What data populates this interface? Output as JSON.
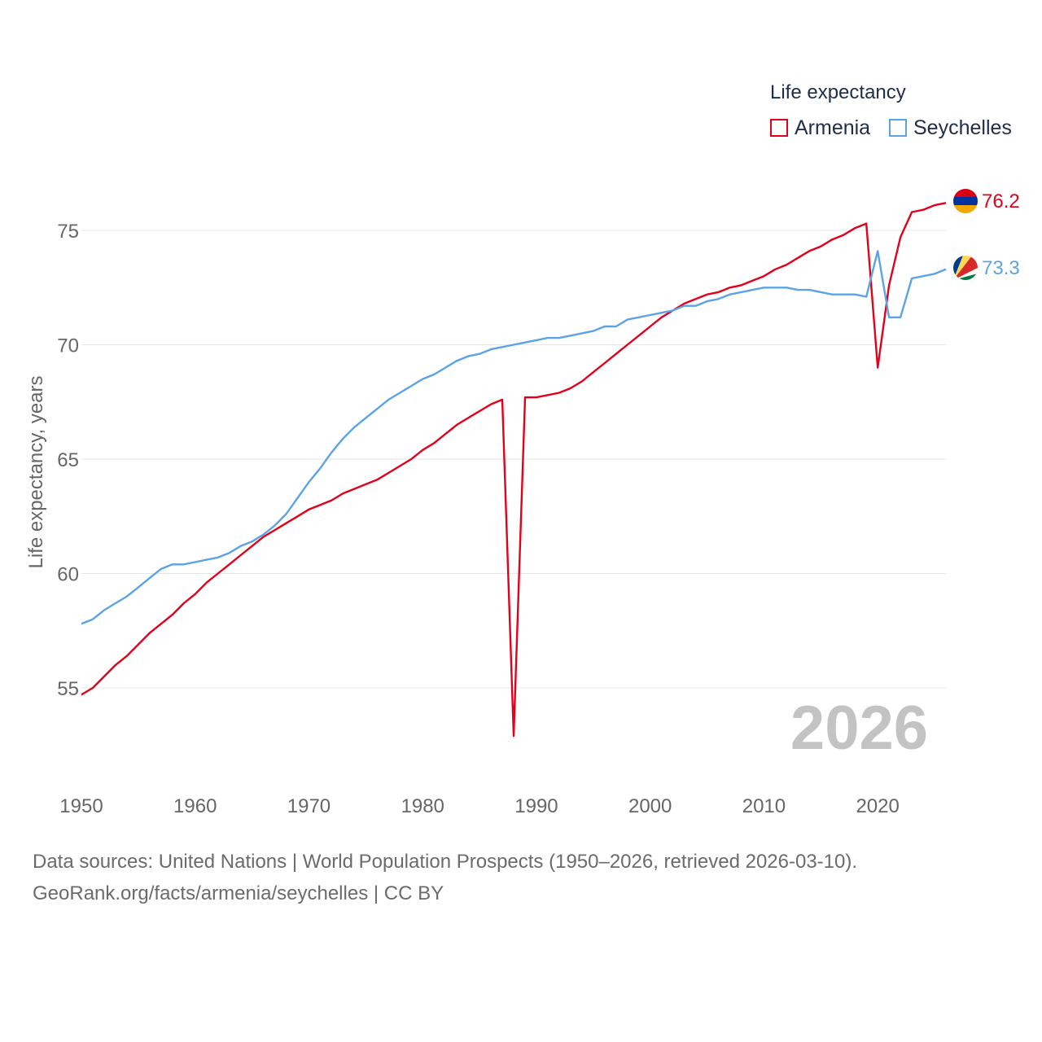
{
  "chart_data": {
    "type": "line",
    "title": "",
    "xlabel": "",
    "ylabel": "Life expectancy, years",
    "xlim": [
      1950,
      2026
    ],
    "ylim": [
      51.5,
      77.5
    ],
    "x_ticks": [
      1950,
      1960,
      1970,
      1980,
      1990,
      2000,
      2010,
      2020
    ],
    "y_ticks": [
      55,
      60,
      65,
      70,
      75
    ],
    "grid": "horizontal",
    "legend": {
      "title": "Life expectancy",
      "position": "top-right"
    },
    "year_label": "2026",
    "x": [
      1950,
      1951,
      1952,
      1953,
      1954,
      1955,
      1956,
      1957,
      1958,
      1959,
      1960,
      1961,
      1962,
      1963,
      1964,
      1965,
      1966,
      1967,
      1968,
      1969,
      1970,
      1971,
      1972,
      1973,
      1974,
      1975,
      1976,
      1977,
      1978,
      1979,
      1980,
      1981,
      1982,
      1983,
      1984,
      1985,
      1986,
      1987,
      1988,
      1989,
      1990,
      1991,
      1992,
      1993,
      1994,
      1995,
      1996,
      1997,
      1998,
      1999,
      2000,
      2001,
      2002,
      2003,
      2004,
      2005,
      2006,
      2007,
      2008,
      2009,
      2010,
      2011,
      2012,
      2013,
      2014,
      2015,
      2016,
      2017,
      2018,
      2019,
      2020,
      2021,
      2022,
      2023,
      2024,
      2025,
      2026
    ],
    "series": [
      {
        "name": "Armenia",
        "color": "#e3001b",
        "end_label": "76.2",
        "values": [
          54.7,
          55.0,
          55.5,
          56.0,
          56.4,
          56.9,
          57.4,
          57.8,
          58.2,
          58.7,
          59.1,
          59.6,
          60.0,
          60.4,
          60.8,
          61.2,
          61.6,
          61.9,
          62.2,
          62.5,
          62.8,
          63.0,
          63.2,
          63.5,
          63.7,
          63.9,
          64.1,
          64.4,
          64.7,
          65.0,
          65.4,
          65.7,
          66.1,
          66.5,
          66.8,
          67.1,
          67.4,
          67.6,
          52.9,
          67.7,
          67.7,
          67.8,
          67.9,
          68.1,
          68.4,
          68.8,
          69.2,
          69.6,
          70.0,
          70.4,
          70.8,
          71.2,
          71.5,
          71.8,
          72.0,
          72.2,
          72.3,
          72.5,
          72.6,
          72.8,
          73.0,
          73.3,
          73.5,
          73.8,
          74.1,
          74.3,
          74.6,
          74.8,
          75.1,
          75.3,
          69.0,
          72.6,
          74.7,
          75.8,
          75.9,
          76.1,
          76.2
        ]
      },
      {
        "name": "Seychelles",
        "color": "#5ba3e6",
        "end_label": "73.3",
        "values": [
          57.8,
          58.0,
          58.4,
          58.7,
          59.0,
          59.4,
          59.8,
          60.2,
          60.4,
          60.4,
          60.5,
          60.6,
          60.7,
          60.9,
          61.2,
          61.4,
          61.7,
          62.1,
          62.6,
          63.3,
          64.0,
          64.6,
          65.3,
          65.9,
          66.4,
          66.8,
          67.2,
          67.6,
          67.9,
          68.2,
          68.5,
          68.7,
          69.0,
          69.3,
          69.5,
          69.6,
          69.8,
          69.9,
          70.0,
          70.1,
          70.2,
          70.3,
          70.3,
          70.4,
          70.5,
          70.6,
          70.8,
          70.8,
          71.1,
          71.2,
          71.3,
          71.4,
          71.5,
          71.7,
          71.7,
          71.9,
          72.0,
          72.2,
          72.3,
          72.4,
          72.5,
          72.5,
          72.5,
          72.4,
          72.4,
          72.3,
          72.2,
          72.2,
          72.2,
          72.1,
          74.1,
          71.2,
          71.2,
          72.9,
          73.0,
          73.1,
          73.3
        ]
      }
    ]
  },
  "source": {
    "line1": "Data sources: United Nations | World Population Prospects (1950–2026, retrieved 2026-03-10).",
    "line2": "GeoRank.org/facts/armenia/seychelles | CC BY"
  },
  "icons": {
    "armenia_flag": "armenia-flag-icon",
    "seychelles_flag": "seychelles-flag-icon"
  }
}
